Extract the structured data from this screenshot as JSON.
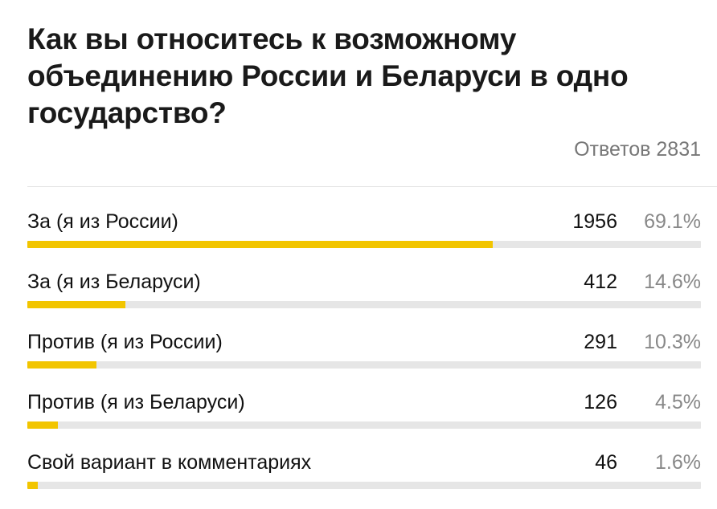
{
  "poll": {
    "question": "Как вы относитесь к возможному объединению России и Беларуси в одно государство?",
    "total_label": "Ответов 2831",
    "bar_color": "#f2c500",
    "options": [
      {
        "label": "За (я из России)",
        "count": "1956",
        "percent": "69.1%",
        "fraction": 0.691
      },
      {
        "label": "За (я из Беларуси)",
        "count": "412",
        "percent": "14.6%",
        "fraction": 0.146
      },
      {
        "label": "Против (я из России)",
        "count": "291",
        "percent": "10.3%",
        "fraction": 0.103
      },
      {
        "label": "Против (я из Беларуси)",
        "count": "126",
        "percent": "4.5%",
        "fraction": 0.045
      },
      {
        "label": "Свой вариант в комментариях",
        "count": "46",
        "percent": "1.6%",
        "fraction": 0.016
      }
    ]
  }
}
